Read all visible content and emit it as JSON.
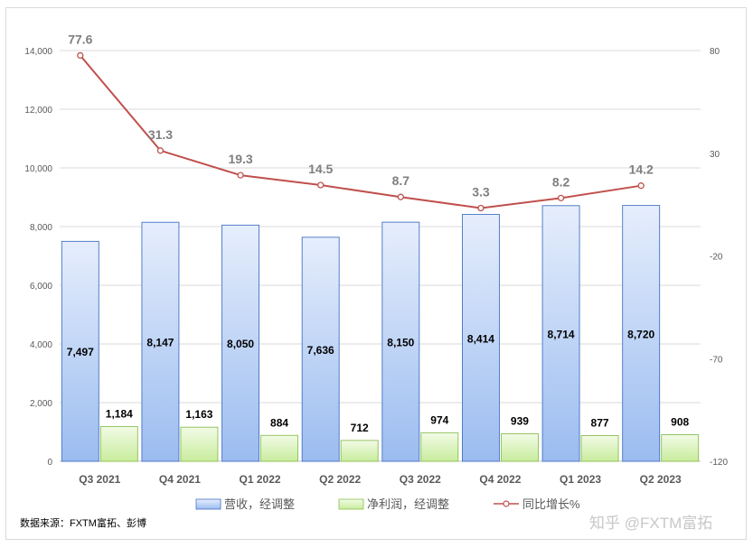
{
  "chart_data": {
    "type": "bar",
    "categories": [
      "Q3 2021",
      "Q4 2021",
      "Q1 2022",
      "Q2 2022",
      "Q3 2022",
      "Q4 2022",
      "Q1 2023",
      "Q2 2023"
    ],
    "series": [
      {
        "name": "营收，经调整",
        "type": "bar",
        "axis": "left",
        "values": [
          7497,
          8147,
          8050,
          7636,
          8150,
          8414,
          8714,
          8720
        ],
        "labels": [
          "7,497",
          "8,147",
          "8,050",
          "7,636",
          "8,150",
          "8,414",
          "8,714",
          "8,720"
        ],
        "color": "#a8c6f2"
      },
      {
        "name": "净利润，经调整",
        "type": "bar",
        "axis": "left",
        "values": [
          1184,
          1163,
          884,
          712,
          974,
          939,
          877,
          908
        ],
        "labels": [
          "1,184",
          "1,163",
          "884",
          "712",
          "974",
          "939",
          "877",
          "908"
        ],
        "color": "#d4f2b0"
      },
      {
        "name": "同比增长%",
        "type": "line",
        "axis": "right",
        "values": [
          77.6,
          31.3,
          19.3,
          14.5,
          8.7,
          3.3,
          8.2,
          14.2
        ],
        "labels": [
          "77.6",
          "31.3",
          "19.3",
          "14.5",
          "8.7",
          "3.3",
          "8.2",
          "14.2"
        ],
        "color": "#c0504d"
      }
    ],
    "y_left": {
      "min": 0,
      "max": 14000,
      "ticks": [
        0,
        2000,
        4000,
        6000,
        8000,
        10000,
        12000,
        14000
      ],
      "tick_labels": [
        "0",
        "2,000",
        "4,000",
        "6,000",
        "8,000",
        "10,000",
        "12,000",
        "14,000"
      ]
    },
    "y_right": {
      "min": -120,
      "max": 80,
      "ticks": [
        -120,
        -70,
        -20,
        30,
        80
      ],
      "tick_labels": [
        "-120",
        "-70",
        "-20",
        "30",
        "80"
      ]
    },
    "grid": true,
    "legend_position": "bottom"
  },
  "source_note": "数据来源：FXTM富拓、彭博",
  "watermark": "知乎 @FXTM富拓"
}
